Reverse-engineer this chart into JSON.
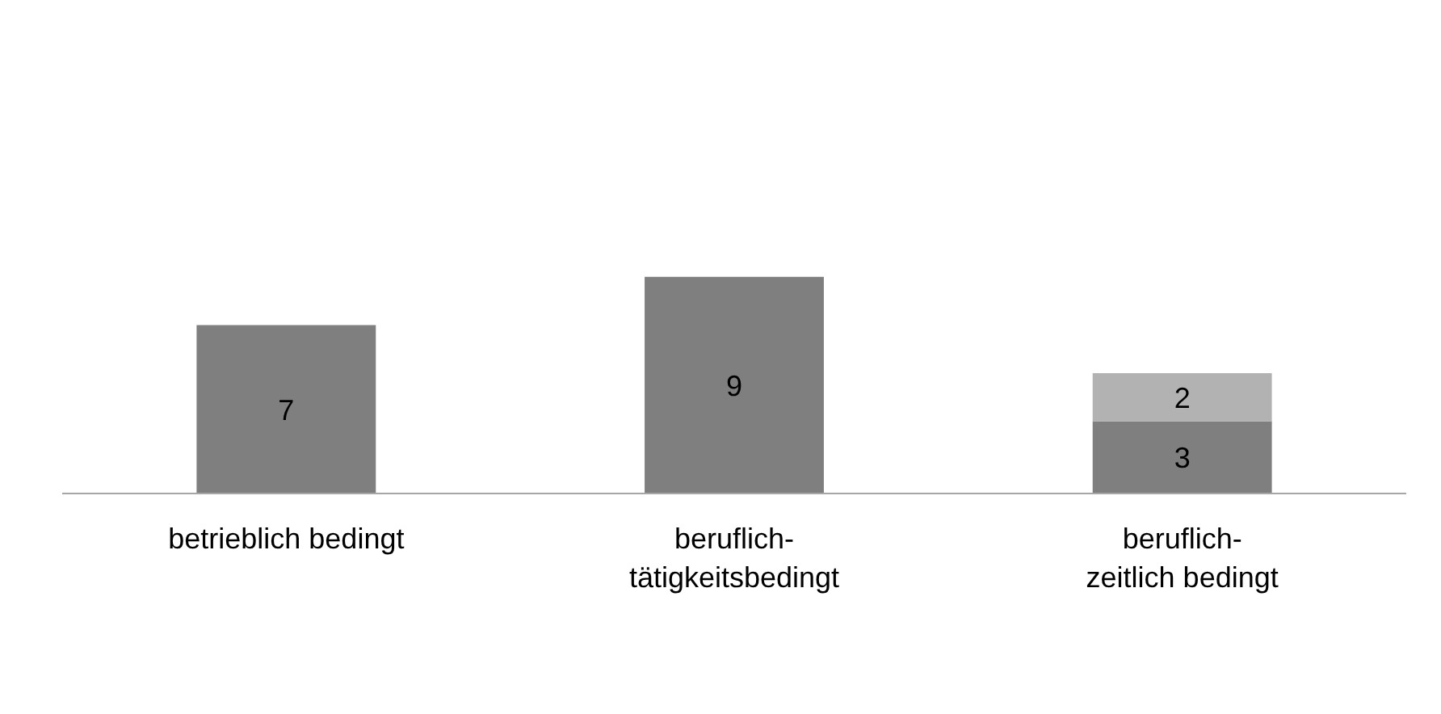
{
  "chart_data": {
    "type": "bar",
    "stacked": true,
    "data_labels": true,
    "grid": false,
    "categories": [
      "betrieblich bedingt",
      "beruflich-\ntätigkeitsbedingt",
      "beruflich-\nzeitlich bedingt"
    ],
    "series": [
      {
        "color": "#7f7f7f",
        "values": [
          7,
          9,
          3
        ]
      },
      {
        "color": "#b2b2b2",
        "values": [
          null,
          null,
          2
        ]
      }
    ]
  }
}
